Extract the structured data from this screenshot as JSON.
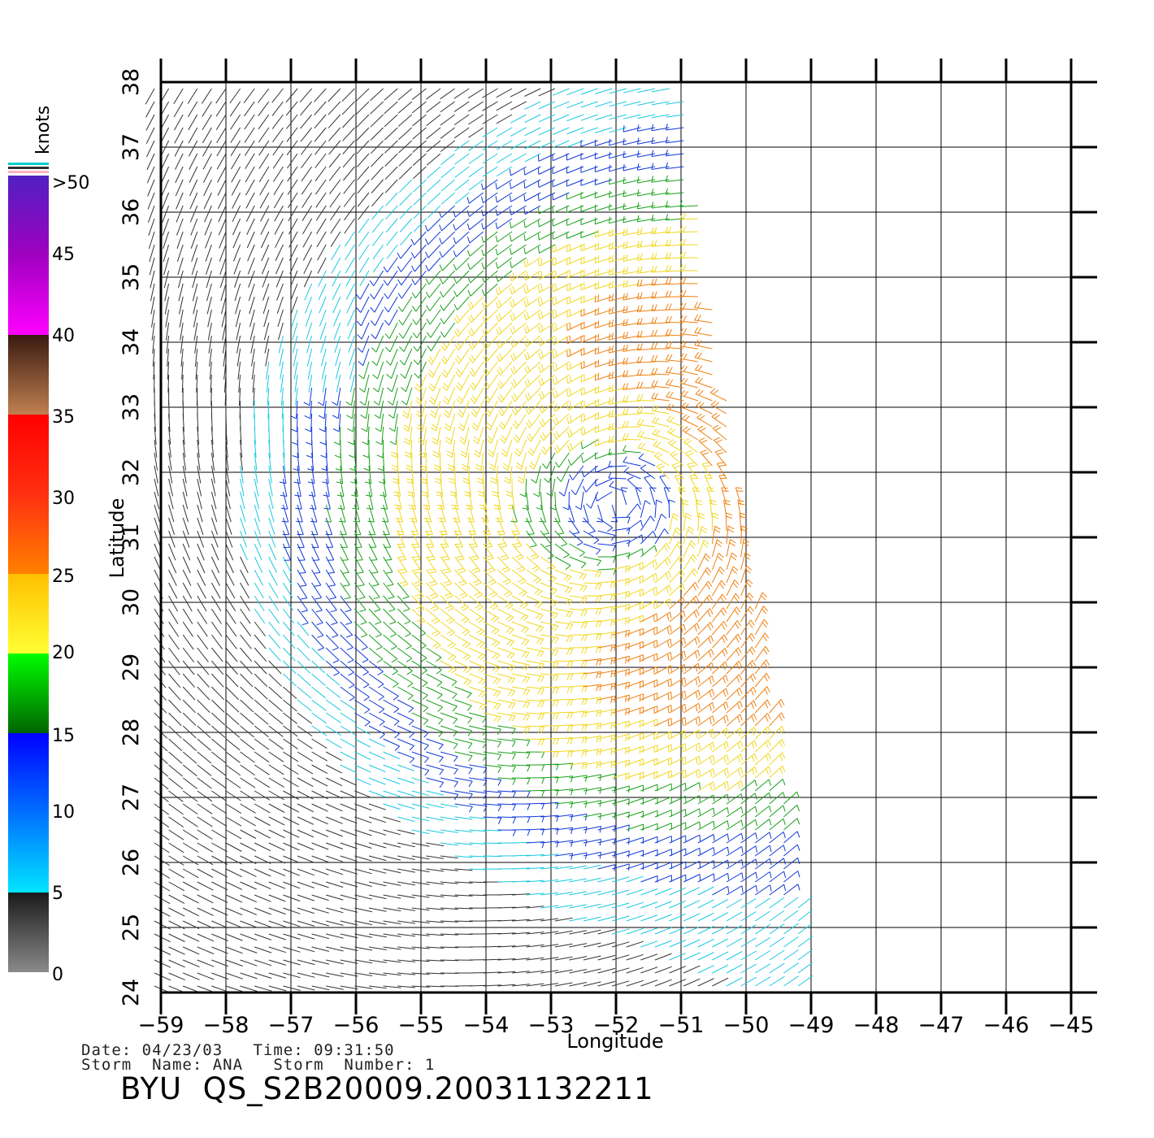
{
  "map": {
    "xlabel": "Longitude",
    "ylabel": "Latitude",
    "lon_ticks": [
      "−59",
      "−58",
      "−57",
      "−56",
      "−55",
      "−54",
      "−53",
      "−52",
      "−51",
      "−50",
      "−49",
      "−48",
      "−47",
      "−46",
      "−45"
    ],
    "lat_ticks": [
      "24",
      "25",
      "26",
      "27",
      "28",
      "29",
      "30",
      "31",
      "32",
      "33",
      "34",
      "35",
      "36",
      "37",
      "38"
    ],
    "lon_range": [
      -59,
      -45
    ],
    "lat_range": [
      24,
      38
    ],
    "grid": true,
    "swath": "wind barbs over region bounded by longitude −59 to about −49 (east edge slanting from −51 at 38° to −49 at 24°)",
    "storm_center": [
      -52.0,
      31.5
    ]
  },
  "colorbar": {
    "unit": "knots",
    "labels": [
      ">50",
      "45",
      "40",
      "35",
      "30",
      "25",
      "20",
      "15",
      "10",
      "5",
      "0"
    ],
    "colors": {
      "0": "#8a8a8a",
      "5": "#1a1a1a",
      "5b": "#00e5ff",
      "10": "#0070ff",
      "15": "#0000ff",
      "15b": "#006400",
      "20": "#00ff00",
      "20b": "#ffff33",
      "25": "#ffc000",
      "25b": "#ff8000",
      "30": "#ff3010",
      "35": "#ff0000",
      "35b": "#c08050",
      "40": "#3a1a10",
      "40b": "#ff00ff",
      "45": "#a000c0",
      "50": "#5020c0"
    }
  },
  "info": {
    "date_line": "Date: 04/23/03   Time: 09:31:50",
    "storm_line": "Storm  Name: ANA   Storm  Number: 1",
    "product": "BYU  QS_S2B20009.20031132211"
  }
}
